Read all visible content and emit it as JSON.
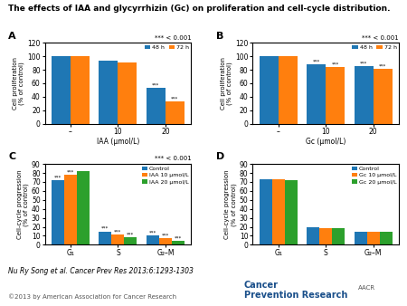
{
  "title": "The effects of IAA and glycyrrhizin (Gc) on proliferation and cell-cycle distribution.",
  "annotations": [
    "Nu Ry Song et al. Cancer Prev Res 2013;6:1293-1303",
    "©2013 by American Association for Cancer Research",
    "Cancer\nPrevention Research",
    "AACR"
  ],
  "chart_data": [
    {
      "type": "bar",
      "title": "A",
      "xlabel": "IAA (μmol/L)",
      "ylabel": "Cell proliferation\n(% of control)",
      "categories": [
        "–",
        "10",
        "20"
      ],
      "series": [
        {
          "name": "48 h",
          "values": [
            100,
            93,
            53
          ],
          "significance": [
            null,
            null,
            "***"
          ]
        },
        {
          "name": "72 h",
          "values": [
            100,
            91,
            33
          ],
          "significance": [
            null,
            null,
            "***"
          ]
        }
      ],
      "ylim": [
        0,
        120
      ],
      "yticks": [
        0,
        20,
        40,
        60,
        80,
        100,
        120
      ],
      "legend": "upper right",
      "annotations": [
        "*** < 0.001"
      ]
    },
    {
      "type": "bar",
      "title": "B",
      "xlabel": "Gc (μmol/L)",
      "ylabel": "Cell proliferation\n(% of control)",
      "categories": [
        "–",
        "10",
        "20"
      ],
      "series": [
        {
          "name": "48 h",
          "values": [
            100,
            88,
            85
          ],
          "significance": [
            null,
            "***",
            "***"
          ]
        },
        {
          "name": "72 h",
          "values": [
            100,
            84,
            81
          ],
          "significance": [
            null,
            "***",
            "***"
          ]
        }
      ],
      "ylim": [
        0,
        120
      ],
      "yticks": [
        0,
        20,
        40,
        60,
        80,
        100,
        120
      ],
      "legend": "upper right",
      "annotations": [
        "*** < 0.001"
      ]
    },
    {
      "type": "bar",
      "title": "C",
      "ylabel": "Cell-cycle progression\n(% of control)",
      "categories": [
        "G₁",
        "S",
        "G₂–M"
      ],
      "series": [
        {
          "name": "Control",
          "values": [
            72,
            15,
            10
          ],
          "significance": [
            "***",
            "***",
            "***"
          ]
        },
        {
          "name": "IAA 10 μmol/L",
          "values": [
            78,
            11,
            7
          ],
          "significance": [
            "***",
            "***",
            "***"
          ]
        },
        {
          "name": "IAA 20 μmol/L",
          "values": [
            82,
            8,
            4
          ],
          "significance": [
            null,
            "***",
            "***"
          ]
        }
      ],
      "ylim": [
        0,
        90
      ],
      "yticks": [
        0,
        10,
        20,
        30,
        40,
        50,
        60,
        70,
        80,
        90
      ],
      "legend": "upper right",
      "annotations": [
        "*** < 0.001"
      ]
    },
    {
      "type": "bar",
      "title": "D",
      "ylabel": "Cell-cycle progression\n(% of control)",
      "categories": [
        "G₁",
        "S",
        "G₂–M"
      ],
      "series": [
        {
          "name": "Control",
          "values": [
            73,
            20,
            15
          ]
        },
        {
          "name": "Gc 10 μmol/L",
          "values": [
            73,
            19,
            15
          ]
        },
        {
          "name": "Gc 20 μmol/L",
          "values": [
            72,
            19,
            15
          ]
        }
      ],
      "ylim": [
        0,
        90
      ],
      "yticks": [
        0,
        10,
        20,
        30,
        40,
        50,
        60,
        70,
        80,
        90
      ],
      "legend": "upper right"
    }
  ]
}
